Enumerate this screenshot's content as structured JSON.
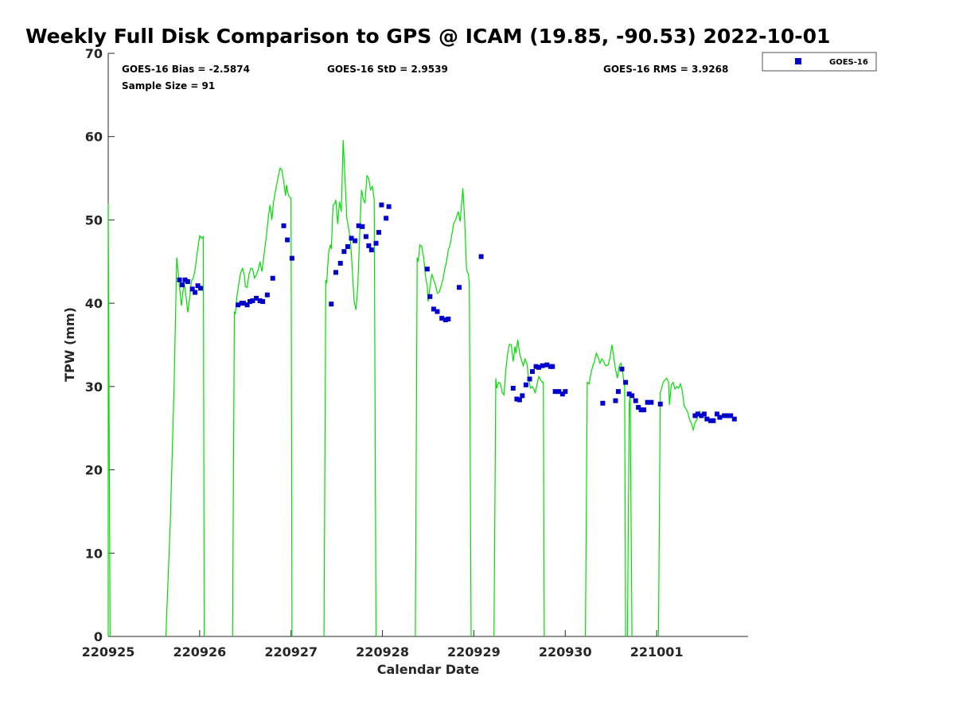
{
  "chart_data": {
    "type": "line",
    "title": "Weekly Full Disk Comparison to GPS @ ICAM (19.85, -90.53) 2022-10-01",
    "xlabel": "Calendar Date",
    "ylabel": "TPW (mm)",
    "xlim": [
      0,
      7
    ],
    "ylim": [
      0,
      70
    ],
    "x_ticks": [
      {
        "value": 0,
        "label": "220925"
      },
      {
        "value": 1,
        "label": "220926"
      },
      {
        "value": 2,
        "label": "220927"
      },
      {
        "value": 3,
        "label": "220928"
      },
      {
        "value": 4,
        "label": "220929"
      },
      {
        "value": 5,
        "label": "220930"
      },
      {
        "value": 6,
        "label": "221001"
      }
    ],
    "y_ticks": [
      0,
      10,
      20,
      30,
      40,
      50,
      60,
      70
    ],
    "stats": {
      "bias": "GOES-16 Bias = -2.5874",
      "std": "GOES-16 StD = 2.9539",
      "rms": "GOES-16 RMS = 3.9268",
      "sample": "Sample Size = 91"
    },
    "legend": {
      "position": "top-right",
      "label": "GOES-16"
    },
    "colors": {
      "gps_line": "#00e000",
      "goes_marker": "#0000cc",
      "axis": "#262626"
    },
    "gps_segments": [
      [
        [
          0.0,
          0
        ],
        [
          0.0,
          52
        ],
        [
          0.02,
          0
        ]
      ],
      [
        [
          0.63,
          0
        ],
        [
          0.68,
          14
        ],
        [
          0.72,
          30
        ],
        [
          0.75,
          45.5
        ],
        [
          0.78,
          42
        ],
        [
          0.8,
          39.7
        ],
        [
          0.83,
          42.5
        ],
        [
          0.85,
          41
        ],
        [
          0.87,
          38.9
        ],
        [
          0.89,
          40.5
        ],
        [
          0.91,
          42.7
        ],
        [
          0.93,
          43
        ],
        [
          0.95,
          44
        ],
        [
          0.97,
          45.8
        ],
        [
          1.0,
          48.1
        ],
        [
          1.02,
          47.8
        ],
        [
          1.04,
          48
        ],
        [
          1.05,
          0
        ]
      ],
      [
        [
          1.36,
          0
        ],
        [
          1.38,
          39
        ],
        [
          1.39,
          38.7
        ],
        [
          1.41,
          41
        ],
        [
          1.43,
          42.4
        ],
        [
          1.45,
          43.7
        ],
        [
          1.47,
          44.2
        ],
        [
          1.49,
          43.3
        ],
        [
          1.5,
          42
        ],
        [
          1.52,
          41.9
        ],
        [
          1.54,
          43.5
        ],
        [
          1.56,
          44.2
        ],
        [
          1.58,
          44.1
        ],
        [
          1.6,
          43
        ],
        [
          1.62,
          43.4
        ],
        [
          1.64,
          44
        ],
        [
          1.66,
          45
        ],
        [
          1.68,
          43.8
        ],
        [
          1.7,
          45.5
        ],
        [
          1.73,
          48
        ],
        [
          1.75,
          50.2
        ],
        [
          1.77,
          51.8
        ],
        [
          1.79,
          50
        ],
        [
          1.81,
          52.3
        ],
        [
          1.83,
          53.5
        ],
        [
          1.86,
          55.2
        ],
        [
          1.88,
          56.2
        ],
        [
          1.9,
          56
        ],
        [
          1.92,
          54.6
        ],
        [
          1.94,
          52.9
        ],
        [
          1.95,
          54.2
        ],
        [
          1.97,
          53
        ],
        [
          1.98,
          52.8
        ],
        [
          2.0,
          52.6
        ],
        [
          2.01,
          0
        ]
      ],
      [
        [
          2.36,
          0
        ],
        [
          2.38,
          42.8
        ],
        [
          2.39,
          42.4
        ],
        [
          2.41,
          46
        ],
        [
          2.43,
          47
        ],
        [
          2.44,
          46.5
        ],
        [
          2.46,
          51.8
        ],
        [
          2.48,
          52
        ],
        [
          2.49,
          52.4
        ],
        [
          2.51,
          49.5
        ],
        [
          2.53,
          52.2
        ],
        [
          2.55,
          51
        ],
        [
          2.57,
          59.6
        ],
        [
          2.59,
          55
        ],
        [
          2.61,
          50.2
        ],
        [
          2.63,
          49
        ],
        [
          2.65,
          47.5
        ],
        [
          2.67,
          44
        ],
        [
          2.69,
          40.2
        ],
        [
          2.71,
          39.2
        ],
        [
          2.73,
          42
        ],
        [
          2.75,
          48
        ],
        [
          2.77,
          53.6
        ],
        [
          2.79,
          52.5
        ],
        [
          2.81,
          52
        ],
        [
          2.83,
          55.3
        ],
        [
          2.85,
          55
        ],
        [
          2.87,
          53.6
        ],
        [
          2.89,
          54
        ],
        [
          2.91,
          52.5
        ],
        [
          2.93,
          0
        ]
      ],
      [
        [
          3.36,
          0
        ],
        [
          3.38,
          45.5
        ],
        [
          3.39,
          45
        ],
        [
          3.41,
          47
        ],
        [
          3.43,
          46.8
        ],
        [
          3.45,
          45.5
        ],
        [
          3.47,
          43.3
        ],
        [
          3.49,
          42
        ],
        [
          3.5,
          40.2
        ],
        [
          3.52,
          42
        ],
        [
          3.54,
          43.5
        ],
        [
          3.56,
          42.8
        ],
        [
          3.58,
          42.2
        ],
        [
          3.6,
          41.2
        ],
        [
          3.62,
          41.3
        ],
        [
          3.64,
          42
        ],
        [
          3.66,
          42.8
        ],
        [
          3.68,
          44
        ],
        [
          3.7,
          45
        ],
        [
          3.72,
          46.4
        ],
        [
          3.74,
          47
        ],
        [
          3.76,
          48.3
        ],
        [
          3.78,
          49.6
        ],
        [
          3.8,
          50
        ],
        [
          3.83,
          51
        ],
        [
          3.85,
          49.8
        ],
        [
          3.88,
          53.8
        ],
        [
          3.9,
          50
        ],
        [
          3.92,
          44
        ],
        [
          3.94,
          43.5
        ],
        [
          3.95,
          42.5
        ],
        [
          3.97,
          0
        ]
      ],
      [
        [
          4.22,
          0
        ],
        [
          4.24,
          31
        ],
        [
          4.25,
          29.8
        ],
        [
          4.27,
          30.5
        ],
        [
          4.29,
          30.4
        ],
        [
          4.31,
          29.3
        ],
        [
          4.33,
          29
        ],
        [
          4.35,
          32
        ],
        [
          4.37,
          34
        ],
        [
          4.39,
          35.1
        ],
        [
          4.41,
          35
        ],
        [
          4.43,
          33
        ],
        [
          4.45,
          34.8
        ],
        [
          4.46,
          34
        ],
        [
          4.48,
          35.6
        ],
        [
          4.5,
          34
        ],
        [
          4.52,
          33.2
        ],
        [
          4.54,
          32.5
        ],
        [
          4.56,
          33.3
        ],
        [
          4.58,
          32.8
        ],
        [
          4.6,
          31
        ],
        [
          4.62,
          29.8
        ],
        [
          4.64,
          30
        ],
        [
          4.66,
          29.6
        ],
        [
          4.67,
          29.2
        ],
        [
          4.69,
          30.2
        ],
        [
          4.71,
          31.2
        ],
        [
          4.73,
          30.8
        ],
        [
          4.75,
          30.5
        ],
        [
          4.76,
          30.5
        ],
        [
          4.77,
          0
        ]
      ],
      [
        [
          5.22,
          0
        ],
        [
          5.24,
          30.5
        ],
        [
          5.26,
          30.3
        ],
        [
          5.28,
          31.5
        ],
        [
          5.3,
          32.4
        ],
        [
          5.32,
          33
        ],
        [
          5.34,
          34
        ],
        [
          5.36,
          33.5
        ],
        [
          5.38,
          32.8
        ],
        [
          5.4,
          33.3
        ],
        [
          5.42,
          33
        ],
        [
          5.44,
          32.5
        ],
        [
          5.45,
          32.5
        ],
        [
          5.47,
          32.6
        ],
        [
          5.49,
          33.5
        ],
        [
          5.51,
          35
        ],
        [
          5.53,
          33.5
        ],
        [
          5.55,
          32
        ],
        [
          5.57,
          31
        ],
        [
          5.59,
          32.5
        ],
        [
          5.61,
          32.8
        ],
        [
          5.63,
          31.5
        ],
        [
          5.65,
          30
        ],
        [
          5.66,
          0
        ]
      ],
      [
        [
          5.68,
          0
        ],
        [
          5.7,
          28
        ],
        [
          5.71,
          29
        ],
        [
          5.73,
          0
        ]
      ],
      [
        [
          6.02,
          0
        ],
        [
          6.04,
          29.3
        ],
        [
          6.05,
          29.6
        ],
        [
          6.07,
          30.5
        ],
        [
          6.09,
          30.8
        ],
        [
          6.11,
          31
        ],
        [
          6.13,
          30.5
        ],
        [
          6.14,
          27.8
        ],
        [
          6.16,
          30.2
        ],
        [
          6.18,
          30.5
        ],
        [
          6.2,
          29.7
        ],
        [
          6.22,
          30
        ],
        [
          6.24,
          29.8
        ],
        [
          6.26,
          30.3
        ],
        [
          6.28,
          29.5
        ],
        [
          6.3,
          27.7
        ],
        [
          6.32,
          27.3
        ],
        [
          6.34,
          26.9
        ],
        [
          6.36,
          26
        ],
        [
          6.38,
          25.6
        ],
        [
          6.4,
          24.8
        ],
        [
          6.42,
          25.7
        ],
        [
          6.44,
          26
        ],
        [
          6.46,
          27
        ],
        [
          6.48,
          27
        ]
      ]
    ],
    "goes_points": [
      [
        0.78,
        42.8
      ],
      [
        0.81,
        42.2
      ],
      [
        0.84,
        42.8
      ],
      [
        0.87,
        42.6
      ],
      [
        0.92,
        41.7
      ],
      [
        0.95,
        41.3
      ],
      [
        0.98,
        42.1
      ],
      [
        1.01,
        41.8
      ],
      [
        1.42,
        39.8
      ],
      [
        1.46,
        40
      ],
      [
        1.48,
        40
      ],
      [
        1.52,
        39.8
      ],
      [
        1.55,
        40.2
      ],
      [
        1.58,
        40.3
      ],
      [
        1.62,
        40.6
      ],
      [
        1.66,
        40.3
      ],
      [
        1.69,
        40.2
      ],
      [
        1.74,
        41
      ],
      [
        1.8,
        43
      ],
      [
        1.92,
        49.3
      ],
      [
        1.96,
        47.6
      ],
      [
        2.01,
        45.4
      ],
      [
        2.44,
        39.9
      ],
      [
        2.49,
        43.7
      ],
      [
        2.54,
        44.8
      ],
      [
        2.58,
        46.2
      ],
      [
        2.62,
        46.8
      ],
      [
        2.66,
        47.8
      ],
      [
        2.7,
        47.5
      ],
      [
        2.74,
        49.3
      ],
      [
        2.78,
        49.2
      ],
      [
        2.82,
        48
      ],
      [
        2.85,
        46.9
      ],
      [
        2.88,
        46.4
      ],
      [
        2.93,
        47.2
      ],
      [
        2.96,
        48.5
      ],
      [
        2.99,
        51.8
      ],
      [
        3.04,
        50.2
      ],
      [
        3.07,
        51.6
      ],
      [
        3.49,
        44.1
      ],
      [
        3.52,
        40.8
      ],
      [
        3.56,
        39.3
      ],
      [
        3.6,
        39
      ],
      [
        3.65,
        38.2
      ],
      [
        3.69,
        38
      ],
      [
        3.72,
        38.1
      ],
      [
        3.84,
        41.9
      ],
      [
        4.08,
        45.6
      ],
      [
        4.43,
        29.8
      ],
      [
        4.47,
        28.5
      ],
      [
        4.5,
        28.4
      ],
      [
        4.53,
        28.9
      ],
      [
        4.57,
        30.2
      ],
      [
        4.61,
        30.9
      ],
      [
        4.64,
        31.8
      ],
      [
        4.68,
        32.4
      ],
      [
        4.71,
        32.3
      ],
      [
        4.75,
        32.5
      ],
      [
        4.8,
        32.6
      ],
      [
        4.84,
        32.4
      ],
      [
        4.86,
        32.4
      ],
      [
        4.89,
        29.4
      ],
      [
        4.93,
        29.4
      ],
      [
        4.97,
        29.1
      ],
      [
        5.0,
        29.4
      ],
      [
        5.41,
        28
      ],
      [
        5.55,
        28.3
      ],
      [
        5.58,
        29.4
      ],
      [
        5.62,
        32.1
      ],
      [
        5.66,
        30.5
      ],
      [
        5.7,
        29.1
      ],
      [
        5.73,
        28.9
      ],
      [
        5.77,
        28.3
      ],
      [
        5.8,
        27.5
      ],
      [
        5.83,
        27.2
      ],
      [
        5.86,
        27.2
      ],
      [
        5.9,
        28.1
      ],
      [
        5.94,
        28.1
      ],
      [
        6.04,
        27.9
      ],
      [
        6.42,
        26.5
      ],
      [
        6.45,
        26.7
      ],
      [
        6.49,
        26.5
      ],
      [
        6.52,
        26.7
      ],
      [
        6.55,
        26.1
      ],
      [
        6.59,
        25.9
      ],
      [
        6.62,
        25.9
      ],
      [
        6.66,
        26.7
      ],
      [
        6.69,
        26.3
      ],
      [
        6.74,
        26.5
      ],
      [
        6.77,
        26.5
      ],
      [
        6.81,
        26.5
      ],
      [
        6.85,
        26.1
      ]
    ]
  }
}
